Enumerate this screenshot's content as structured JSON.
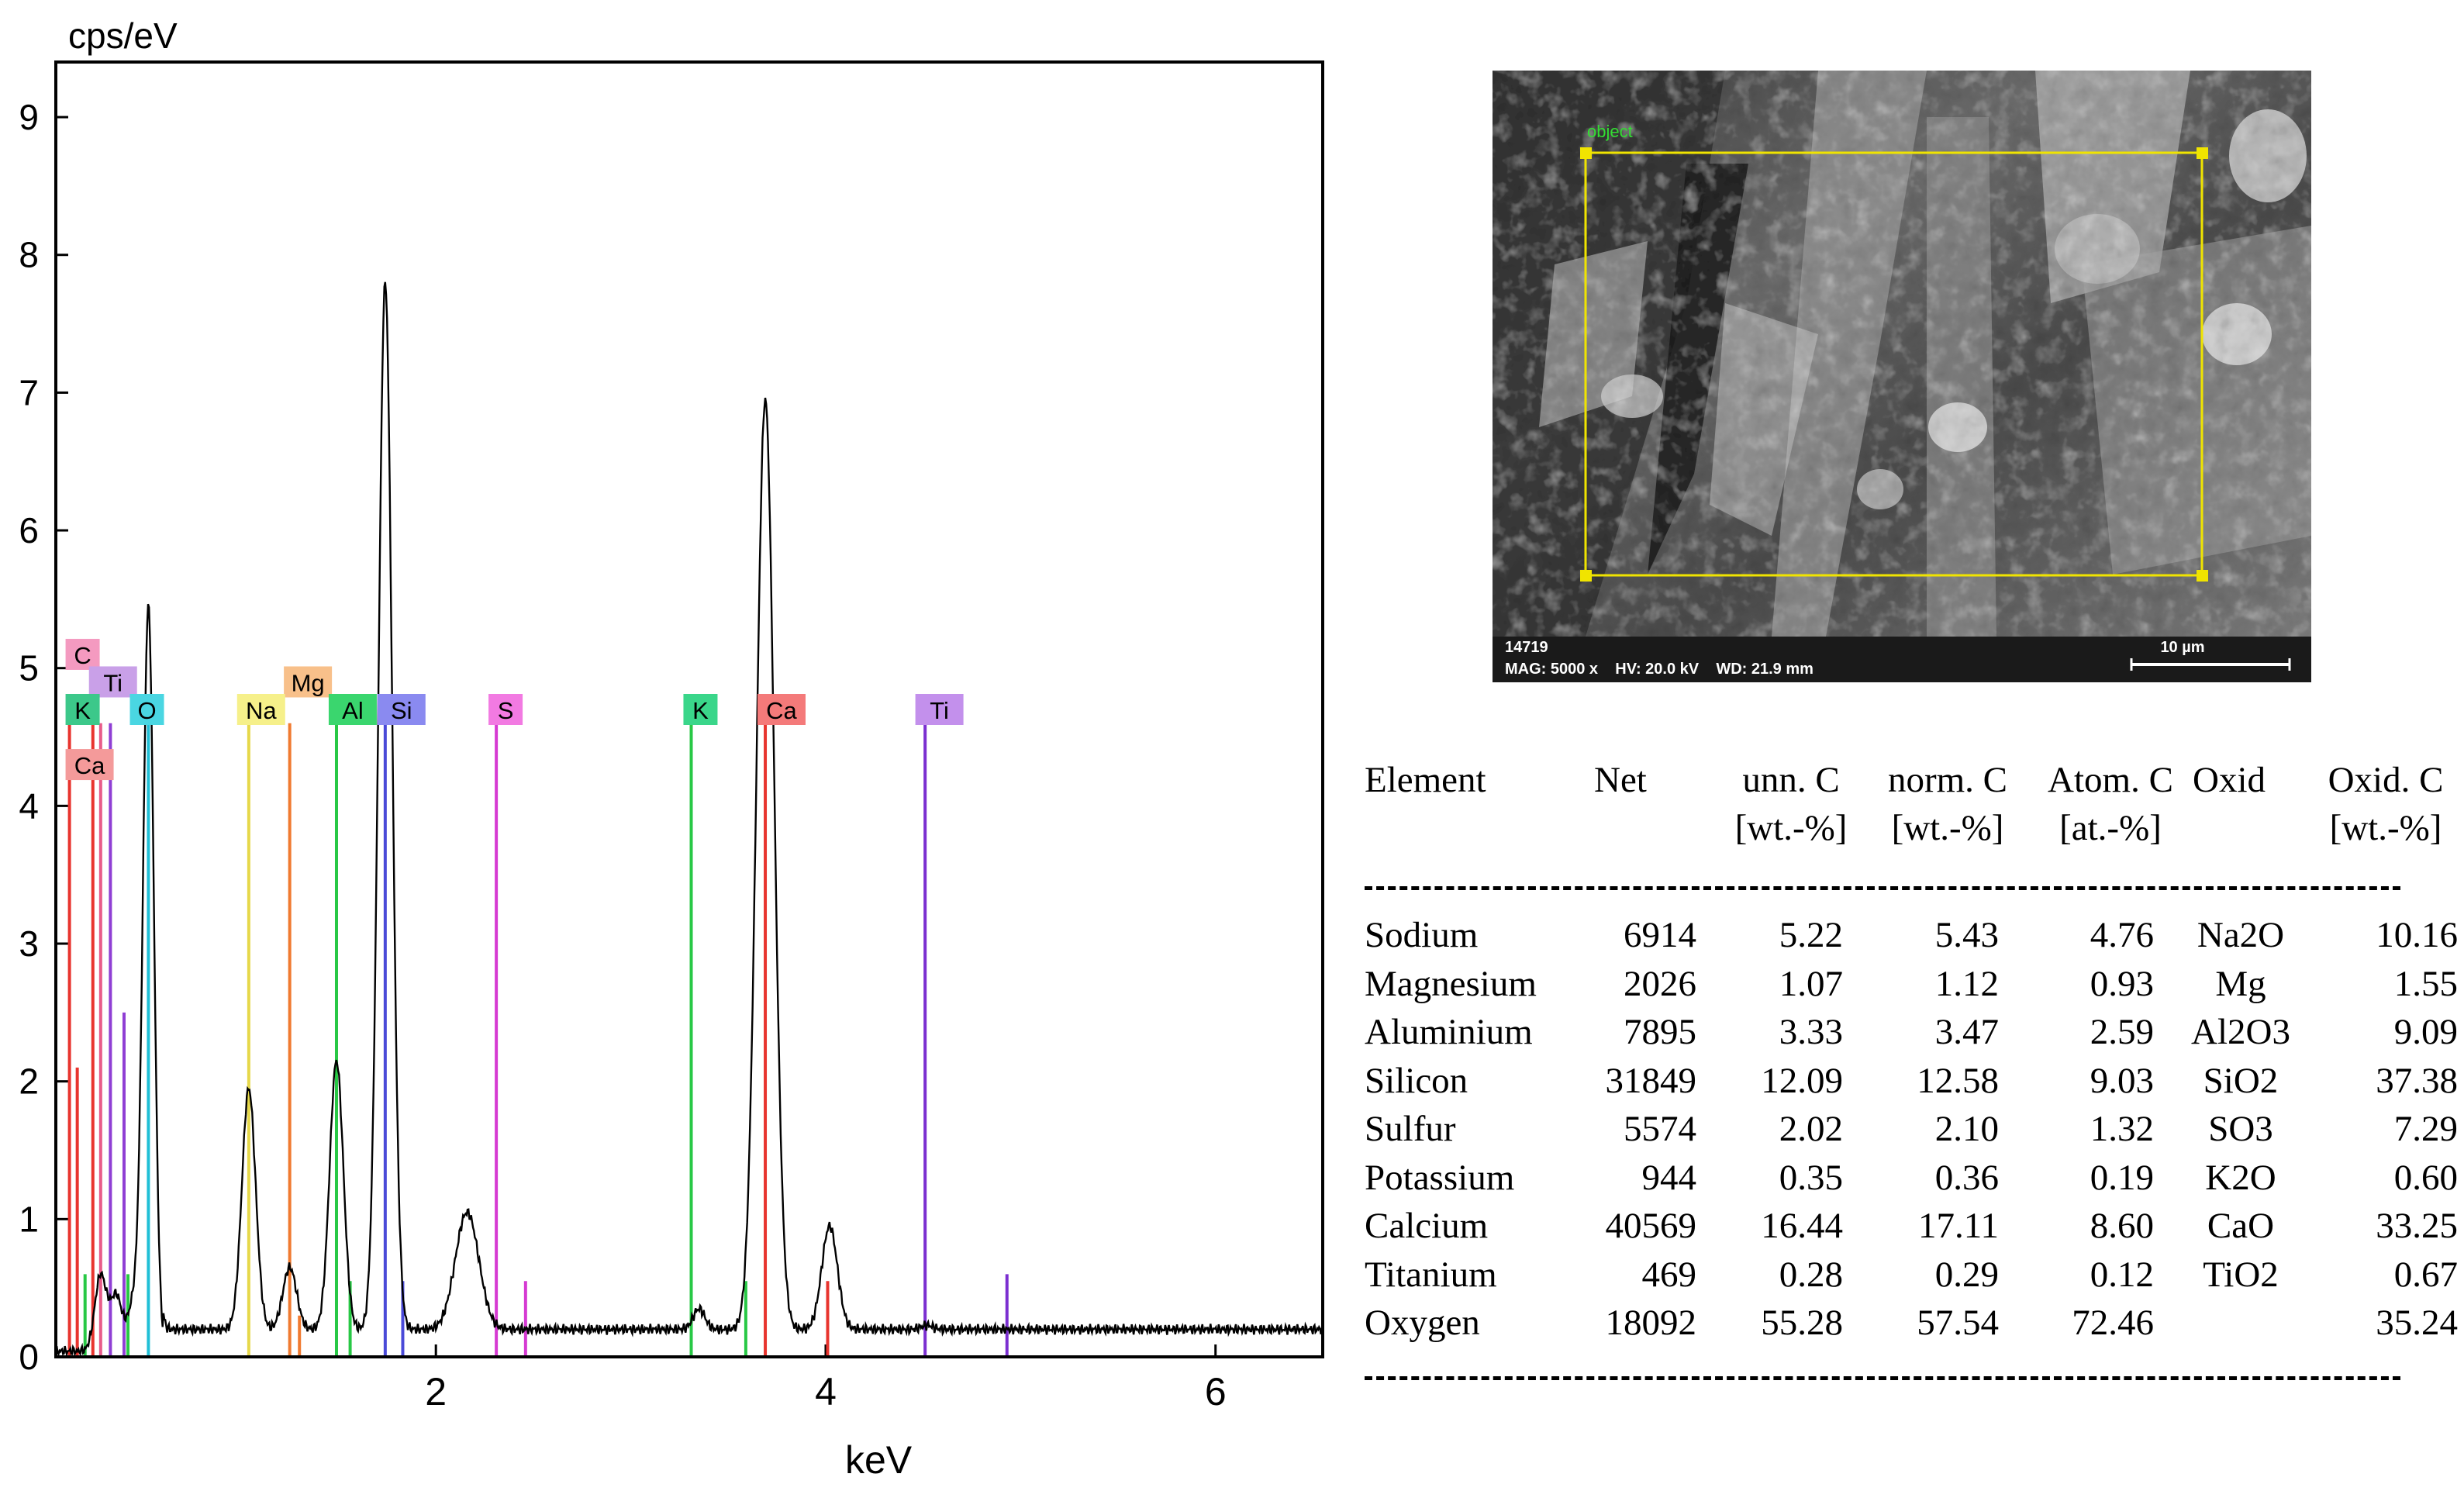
{
  "chart_data": {
    "type": "line",
    "title": "",
    "ylabel": "cps/eV",
    "xlabel": "keV",
    "xlim": [
      0.05,
      6.55
    ],
    "ylim": [
      0,
      9.4
    ],
    "x_ticks": [
      2,
      4,
      6
    ],
    "y_ticks": [
      0,
      1,
      2,
      3,
      4,
      5,
      6,
      7,
      8,
      9
    ],
    "baseline": 0.2,
    "spectrum_peaks": [
      {
        "energy": 0.28,
        "height": 0.55,
        "width": 0.03
      },
      {
        "energy": 0.36,
        "height": 0.4,
        "width": 0.03
      },
      {
        "energy": 0.45,
        "height": 0.35,
        "width": 0.03
      },
      {
        "energy": 0.525,
        "height": 5.4,
        "width": 0.028
      },
      {
        "energy": 1.04,
        "height": 1.75,
        "width": 0.035
      },
      {
        "energy": 1.25,
        "height": 0.45,
        "width": 0.035
      },
      {
        "energy": 1.49,
        "height": 1.95,
        "width": 0.035
      },
      {
        "energy": 1.74,
        "height": 7.6,
        "width": 0.035
      },
      {
        "energy": 2.16,
        "height": 0.85,
        "width": 0.06
      },
      {
        "energy": 3.35,
        "height": 0.15,
        "width": 0.03
      },
      {
        "energy": 3.69,
        "height": 6.75,
        "width": 0.045
      },
      {
        "energy": 4.02,
        "height": 0.75,
        "width": 0.04
      },
      {
        "energy": 4.52,
        "height": 0.03,
        "width": 0.03
      }
    ],
    "element_lines": [
      {
        "energy": 0.12,
        "height": 4.6,
        "color": "#e8342e"
      },
      {
        "energy": 0.16,
        "height": 2.1,
        "color": "#e8342e"
      },
      {
        "energy": 0.2,
        "height": 0.6,
        "color": "#28c845"
      },
      {
        "energy": 0.24,
        "height": 4.6,
        "color": "#e8342e"
      },
      {
        "energy": 0.28,
        "height": 4.6,
        "color": "#e85c8a"
      },
      {
        "energy": 0.33,
        "height": 4.6,
        "color": "#8f3ed4"
      },
      {
        "energy": 0.4,
        "height": 2.5,
        "color": "#8f3ed4"
      },
      {
        "energy": 0.42,
        "height": 0.6,
        "color": "#28c845"
      },
      {
        "energy": 0.525,
        "height": 4.6,
        "color": "#1fbfd6"
      },
      {
        "energy": 1.04,
        "height": 4.6,
        "color": "#e6d84a"
      },
      {
        "energy": 1.25,
        "height": 4.6,
        "color": "#f07a30"
      },
      {
        "energy": 1.3,
        "height": 0.3,
        "color": "#f07a30"
      },
      {
        "energy": 1.49,
        "height": 4.6,
        "color": "#28c845"
      },
      {
        "energy": 1.56,
        "height": 0.55,
        "color": "#28c845"
      },
      {
        "energy": 1.74,
        "height": 4.6,
        "color": "#4a4ad8"
      },
      {
        "energy": 1.83,
        "height": 0.55,
        "color": "#4a4ad8"
      },
      {
        "energy": 2.31,
        "height": 4.6,
        "color": "#d63ad2"
      },
      {
        "energy": 2.46,
        "height": 0.55,
        "color": "#d63ad2"
      },
      {
        "energy": 3.31,
        "height": 4.6,
        "color": "#28c845"
      },
      {
        "energy": 3.59,
        "height": 0.55,
        "color": "#28c845"
      },
      {
        "energy": 3.69,
        "height": 4.6,
        "color": "#e8342e"
      },
      {
        "energy": 4.01,
        "height": 0.55,
        "color": "#e8342e"
      },
      {
        "energy": 4.51,
        "height": 4.6,
        "color": "#7b2fd0"
      },
      {
        "energy": 4.93,
        "height": 0.6,
        "color": "#7b2fd0"
      }
    ],
    "element_labels": [
      {
        "text": "C",
        "energy": 0.1,
        "level": 5.1,
        "fill": "#f49ac0"
      },
      {
        "text": "Ti",
        "energy": 0.22,
        "level": 4.9,
        "fill": "#c9a0e8"
      },
      {
        "text": "Mg",
        "energy": 1.22,
        "level": 4.9,
        "fill": "#f8c08a"
      },
      {
        "text": "K",
        "energy": 0.1,
        "level": 4.7,
        "fill": "#3cc88a"
      },
      {
        "text": "O",
        "energy": 0.43,
        "level": 4.7,
        "fill": "#4ad6e2"
      },
      {
        "text": "Na",
        "energy": 0.98,
        "level": 4.7,
        "fill": "#f6f08a"
      },
      {
        "text": "Al",
        "energy": 1.45,
        "level": 4.7,
        "fill": "#3ad66e"
      },
      {
        "text": "Si",
        "energy": 1.7,
        "level": 4.7,
        "fill": "#8a8af0"
      },
      {
        "text": "S",
        "energy": 2.27,
        "level": 4.7,
        "fill": "#f27ae2"
      },
      {
        "text": "K",
        "energy": 3.27,
        "level": 4.7,
        "fill": "#3ad68a"
      },
      {
        "text": "Ca",
        "energy": 3.65,
        "level": 4.7,
        "fill": "#f47a7a"
      },
      {
        "text": "Ti",
        "energy": 4.46,
        "level": 4.7,
        "fill": "#c390ec"
      },
      {
        "text": "Ca",
        "energy": 0.1,
        "level": 4.3,
        "fill": "#f49a9a"
      }
    ]
  },
  "sem_image": {
    "label_object": "object",
    "sample_id": "14719",
    "info": "MAG: 5000 x    HV: 20.0 kV    WD: 21.9 mm",
    "scale_label": "10 µm"
  },
  "eds_table": {
    "headers": [
      {
        "line1": "Element",
        "line2": ""
      },
      {
        "line1": "Net",
        "line2": ""
      },
      {
        "line1": "unn. C",
        "line2": "[wt.-%]"
      },
      {
        "line1": "norm. C",
        "line2": "[wt.-%]"
      },
      {
        "line1": "Atom. C",
        "line2": "[at.-%]"
      },
      {
        "line1": "Oxid",
        "line2": ""
      },
      {
        "line1": "Oxid. C",
        "line2": "[wt.-%]"
      }
    ],
    "rows": [
      {
        "element": "Sodium",
        "net": "6914",
        "unn": "5.22",
        "norm": "5.43",
        "atom": "4.76",
        "oxid": "Na2O",
        "oxid_c": "10.16"
      },
      {
        "element": "Magnesium",
        "net": "2026",
        "unn": "1.07",
        "norm": "1.12",
        "atom": "0.93",
        "oxid": "Mg",
        "oxid_c": "1.55"
      },
      {
        "element": "Aluminium",
        "net": "7895",
        "unn": "3.33",
        "norm": "3.47",
        "atom": "2.59",
        "oxid": "Al2O3",
        "oxid_c": "9.09"
      },
      {
        "element": "Silicon",
        "net": "31849",
        "unn": "12.09",
        "norm": "12.58",
        "atom": "9.03",
        "oxid": "SiO2",
        "oxid_c": "37.38"
      },
      {
        "element": "Sulfur",
        "net": "5574",
        "unn": "2.02",
        "norm": "2.10",
        "atom": "1.32",
        "oxid": "SO3",
        "oxid_c": "7.29"
      },
      {
        "element": "Potassium",
        "net": "944",
        "unn": "0.35",
        "norm": "0.36",
        "atom": "0.19",
        "oxid": "K2O",
        "oxid_c": "0.60"
      },
      {
        "element": "Calcium",
        "net": "40569",
        "unn": "16.44",
        "norm": "17.11",
        "atom": "8.60",
        "oxid": "CaO",
        "oxid_c": "33.25"
      },
      {
        "element": "Titanium",
        "net": "469",
        "unn": "0.28",
        "norm": "0.29",
        "atom": "0.12",
        "oxid": "TiO2",
        "oxid_c": "0.67"
      },
      {
        "element": "Oxygen",
        "net": "18092",
        "unn": "55.28",
        "norm": "57.54",
        "atom": "72.46",
        "oxid": "",
        "oxid_c": "35.24"
      }
    ]
  }
}
